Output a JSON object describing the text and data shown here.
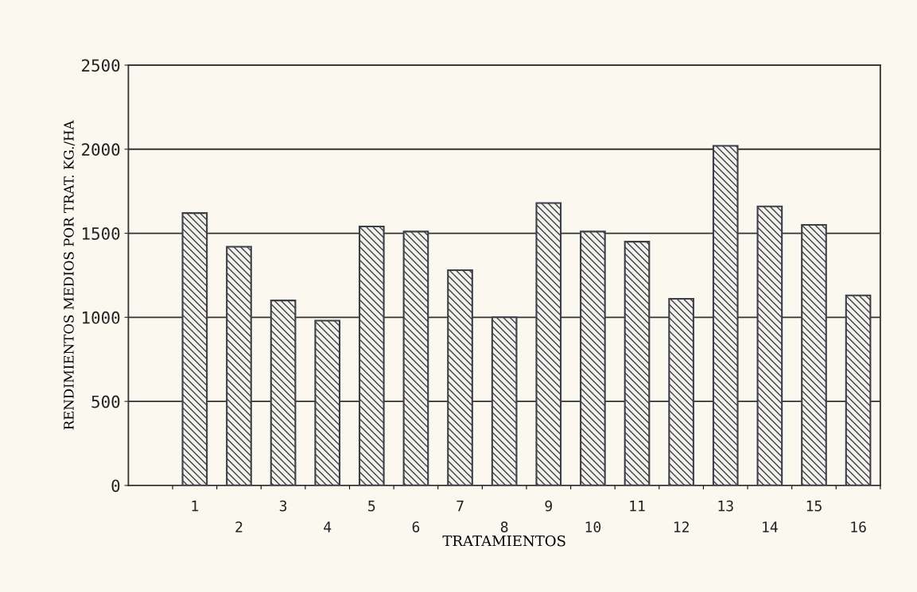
{
  "chart_data": {
    "type": "bar",
    "xlabel": "TRATAMIENTOS",
    "ylabel": "RENDIMIENTOS MEDIOS POR TRAT. KG./HA",
    "categories": [
      "1",
      "2",
      "3",
      "4",
      "5",
      "6",
      "7",
      "8",
      "9",
      "10",
      "11",
      "12",
      "13",
      "14",
      "15",
      "16"
    ],
    "values": [
      1620,
      1420,
      1100,
      980,
      1540,
      1510,
      1280,
      1000,
      1680,
      1510,
      1450,
      1110,
      2020,
      1660,
      1550,
      1130
    ],
    "color": "#3a3f4a",
    "ylim": [
      0,
      2500
    ],
    "yticks": [
      0,
      500,
      1000,
      1500,
      2000,
      2500
    ],
    "grid": "y"
  }
}
